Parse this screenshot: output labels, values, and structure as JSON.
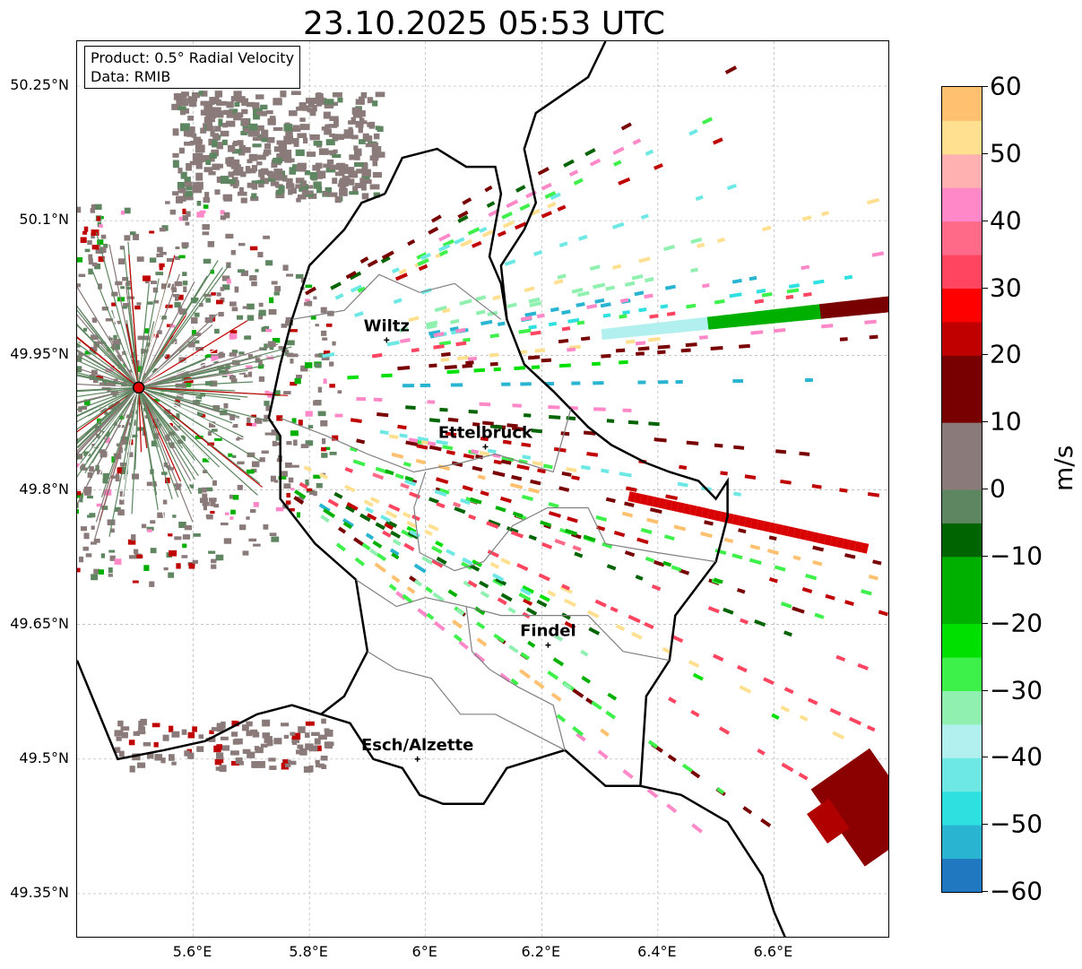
{
  "title": "23.10.2025 05:53 UTC",
  "info": {
    "product": "Product: 0.5° Radial Velocity",
    "source": "Data: RMIB"
  },
  "map": {
    "lon_range": [
      5.4,
      6.8
    ],
    "lat_range": [
      49.3,
      50.3
    ],
    "lat_ticks": [
      {
        "value": 50.25,
        "label": "50.25°N"
      },
      {
        "value": 50.1,
        "label": "50.1°N"
      },
      {
        "value": 49.95,
        "label": "49.95°N"
      },
      {
        "value": 49.8,
        "label": "49.8°N"
      },
      {
        "value": 49.65,
        "label": "49.65°N"
      },
      {
        "value": 49.5,
        "label": "49.5°N"
      },
      {
        "value": 49.35,
        "label": "49.35°N"
      }
    ],
    "lon_ticks": [
      {
        "value": 5.6,
        "label": "5.6°E"
      },
      {
        "value": 5.8,
        "label": "5.8°E"
      },
      {
        "value": 6.0,
        "label": "6°E"
      },
      {
        "value": 6.2,
        "label": "6.2°E"
      },
      {
        "value": 6.4,
        "label": "6.4°E"
      },
      {
        "value": 6.6,
        "label": "6.6°E"
      }
    ],
    "radar_site": {
      "lon": 5.506,
      "lat": 49.914
    },
    "cities": [
      {
        "name": "Wiltz",
        "lon": 5.933,
        "lat": 49.967
      },
      {
        "name": "Ettelbruck",
        "lon": 6.103,
        "lat": 49.848
      },
      {
        "name": "Findel",
        "lon": 6.211,
        "lat": 49.627
      },
      {
        "name": "Esch/Alzette",
        "lon": 5.986,
        "lat": 49.5
      }
    ]
  },
  "colorbar": {
    "unit": "m/s",
    "min": -60,
    "max": 60,
    "ticks": [
      {
        "value": 60,
        "label": "60"
      },
      {
        "value": 50,
        "label": "50"
      },
      {
        "value": 40,
        "label": "40"
      },
      {
        "value": 30,
        "label": "30"
      },
      {
        "value": 20,
        "label": "20"
      },
      {
        "value": 10,
        "label": "10"
      },
      {
        "value": 0,
        "label": "0"
      },
      {
        "value": -10,
        "label": "−10"
      },
      {
        "value": -20,
        "label": "−20"
      },
      {
        "value": -30,
        "label": "−30"
      },
      {
        "value": -40,
        "label": "−40"
      },
      {
        "value": -50,
        "label": "−50"
      },
      {
        "value": -60,
        "label": "−60"
      }
    ],
    "stops": [
      {
        "value": -60,
        "color": "#1f78c0"
      },
      {
        "value": -55,
        "color": "#29b5d2"
      },
      {
        "value": -50,
        "color": "#2ee0e0"
      },
      {
        "value": -45,
        "color": "#6ee8e4"
      },
      {
        "value": -40,
        "color": "#b2efef"
      },
      {
        "value": -35,
        "color": "#8ff0b0"
      },
      {
        "value": -30,
        "color": "#3ef04a"
      },
      {
        "value": -25,
        "color": "#00e000"
      },
      {
        "value": -20,
        "color": "#00b000"
      },
      {
        "value": -10,
        "color": "#006400"
      },
      {
        "value": -6,
        "color": "#5e8660"
      },
      {
        "value": 0,
        "color": "#8a7a7a"
      },
      {
        "value": 8,
        "color": "#7a3040"
      },
      {
        "value": 10,
        "color": "#780000"
      },
      {
        "value": 20,
        "color": "#c00000"
      },
      {
        "value": 25,
        "color": "#ff0000"
      },
      {
        "value": 30,
        "color": "#ff4560"
      },
      {
        "value": 35,
        "color": "#ff6a88"
      },
      {
        "value": 40,
        "color": "#ff88c8"
      },
      {
        "value": 45,
        "color": "#ffb0b0"
      },
      {
        "value": 50,
        "color": "#ffe090"
      },
      {
        "value": 55,
        "color": "#ffc070"
      },
      {
        "value": 60,
        "color": "#ff9a50"
      }
    ]
  }
}
